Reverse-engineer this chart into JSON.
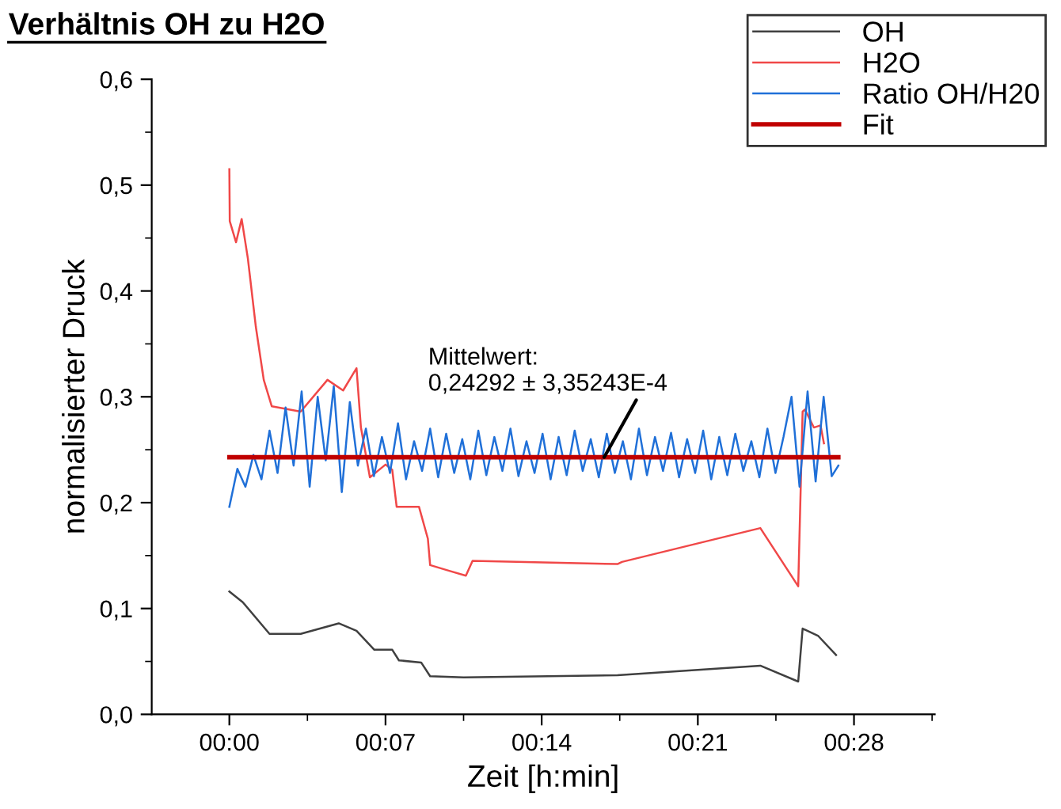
{
  "chart_data": {
    "type": "line",
    "title": "Verhältnis OH zu H2O",
    "xlabel": "Zeit [h:min]",
    "ylabel": "normalisierter Druck",
    "xlim": [
      -0.058,
      0.527
    ],
    "xticks": [
      {
        "value": 0,
        "label": "00:00"
      },
      {
        "value": 0.11667,
        "label": "00:07"
      },
      {
        "value": 0.23333,
        "label": "00:14"
      },
      {
        "value": 0.35,
        "label": "00:21"
      },
      {
        "value": 0.46667,
        "label": "00:28"
      }
    ],
    "ylim": [
      0,
      0.6
    ],
    "yticks": [
      {
        "value": 0,
        "label": "0,0"
      },
      {
        "value": 0.1,
        "label": "0,1"
      },
      {
        "value": 0.2,
        "label": "0,2"
      },
      {
        "value": 0.3,
        "label": "0,3"
      },
      {
        "value": 0.4,
        "label": "0,4"
      },
      {
        "value": 0.5,
        "label": "0,5"
      },
      {
        "value": 0.6,
        "label": "0,6"
      }
    ],
    "grid": false,
    "legend": "top right",
    "marker": "none",
    "line_style": "solid",
    "annotations": [
      {
        "text": "Mittelwert:\n0,24292 ± 3,35243E-4",
        "x": 0.28,
        "y": 0.24292
      }
    ],
    "series": [
      {
        "name": "OH",
        "color": "#404040",
        "x": [
          0,
          0.01,
          0.03,
          0.0533,
          0.0817,
          0.095,
          0.1083,
          0.1217,
          0.1267,
          0.1433,
          0.15,
          0.175,
          0.29,
          0.3967,
          0.425,
          0.4283,
          0.44,
          0.4533
        ],
        "values": [
          0.116,
          0.106,
          0.076,
          0.076,
          0.086,
          0.079,
          0.061,
          0.061,
          0.051,
          0.049,
          0.036,
          0.035,
          0.037,
          0.046,
          0.031,
          0.081,
          0.074,
          0.056
        ]
      },
      {
        "name": "H2O",
        "color": "#f04848",
        "x": [
          0,
          0.0003,
          0.005,
          0.0092,
          0.0138,
          0.0198,
          0.0257,
          0.0317,
          0.0533,
          0.0733,
          0.085,
          0.095,
          0.0983,
          0.105,
          0.1167,
          0.1217,
          0.125,
          0.1417,
          0.1483,
          0.15,
          0.1633,
          0.1767,
          0.1817,
          0.29,
          0.2933,
          0.3967,
          0.425,
          0.4283,
          0.43,
          0.4367,
          0.4417,
          0.4442
        ],
        "values": [
          0.515,
          0.466,
          0.446,
          0.468,
          0.431,
          0.366,
          0.316,
          0.291,
          0.286,
          0.316,
          0.306,
          0.327,
          0.271,
          0.224,
          0.236,
          0.231,
          0.196,
          0.196,
          0.166,
          0.141,
          0.136,
          0.131,
          0.145,
          0.142,
          0.144,
          0.176,
          0.121,
          0.286,
          0.288,
          0.271,
          0.273,
          0.256
        ]
      },
      {
        "name": "Ratio OH/H20",
        "color": "#2070d8",
        "x": [
          0,
          0.006,
          0.012,
          0.018,
          0.024,
          0.03,
          0.036,
          0.042,
          0.048,
          0.054,
          0.06,
          0.066,
          0.072,
          0.078,
          0.084,
          0.09,
          0.096,
          0.102,
          0.108,
          0.114,
          0.12,
          0.126,
          0.132,
          0.138,
          0.144,
          0.15,
          0.156,
          0.162,
          0.168,
          0.174,
          0.18,
          0.186,
          0.192,
          0.198,
          0.204,
          0.21,
          0.216,
          0.222,
          0.228,
          0.234,
          0.24,
          0.246,
          0.252,
          0.258,
          0.264,
          0.27,
          0.276,
          0.282,
          0.288,
          0.294,
          0.3,
          0.306,
          0.312,
          0.318,
          0.324,
          0.33,
          0.336,
          0.342,
          0.348,
          0.354,
          0.36,
          0.366,
          0.372,
          0.378,
          0.384,
          0.39,
          0.396,
          0.402,
          0.408,
          0.414,
          0.42,
          0.426,
          0.432,
          0.438,
          0.444,
          0.45,
          0.455
        ],
        "values": [
          0.196,
          0.232,
          0.215,
          0.245,
          0.222,
          0.268,
          0.228,
          0.29,
          0.235,
          0.305,
          0.215,
          0.3,
          0.24,
          0.31,
          0.21,
          0.295,
          0.235,
          0.27,
          0.225,
          0.262,
          0.228,
          0.275,
          0.222,
          0.258,
          0.23,
          0.27,
          0.224,
          0.265,
          0.228,
          0.26,
          0.222,
          0.268,
          0.226,
          0.262,
          0.23,
          0.27,
          0.225,
          0.258,
          0.228,
          0.265,
          0.222,
          0.262,
          0.226,
          0.268,
          0.23,
          0.26,
          0.224,
          0.265,
          0.228,
          0.258,
          0.222,
          0.27,
          0.226,
          0.262,
          0.23,
          0.266,
          0.224,
          0.26,
          0.228,
          0.268,
          0.222,
          0.262,
          0.226,
          0.265,
          0.23,
          0.258,
          0.224,
          0.27,
          0.228,
          0.262,
          0.3,
          0.215,
          0.305,
          0.22,
          0.3,
          0.225,
          0.235
        ]
      },
      {
        "name": "Fit",
        "color": "#c00000",
        "x": [
          0,
          0.455
        ],
        "values": [
          0.24292,
          0.24292
        ]
      }
    ]
  }
}
